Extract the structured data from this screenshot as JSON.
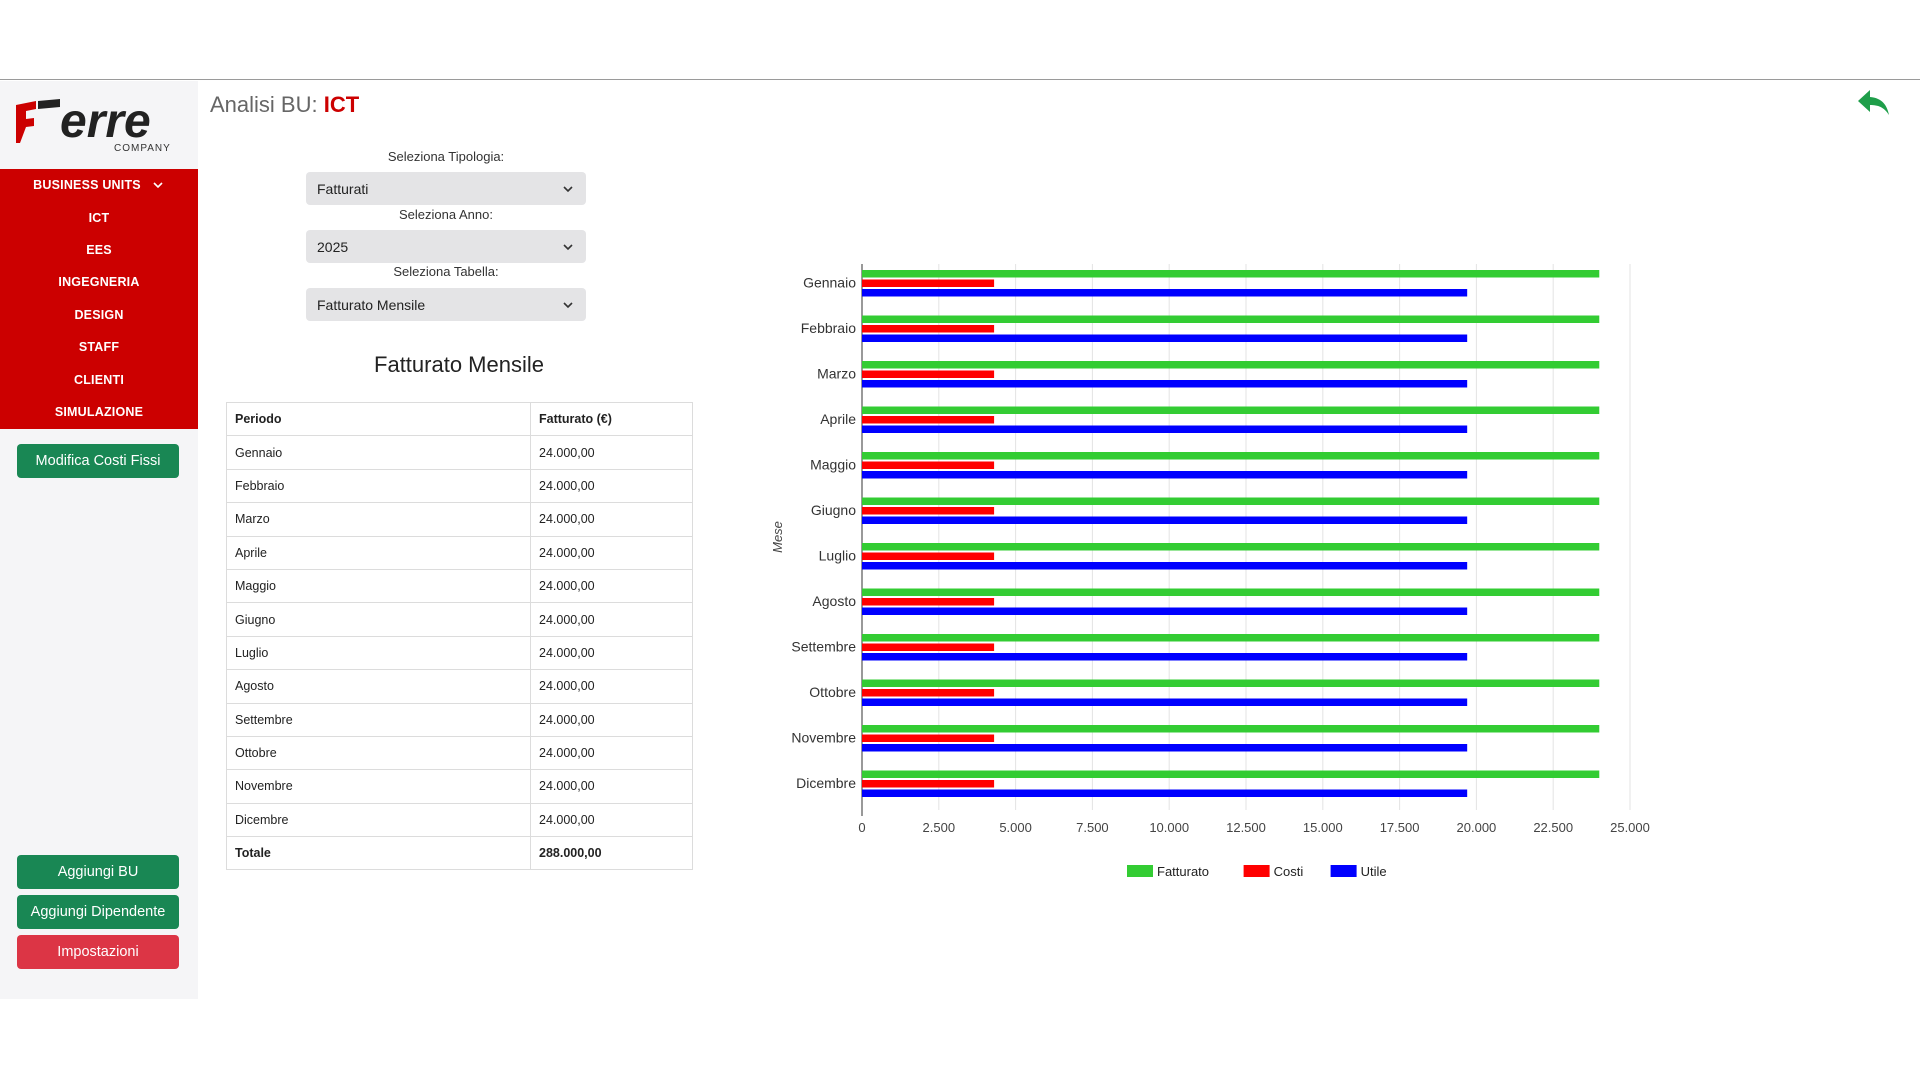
{
  "brand": {
    "logo_text": "erre",
    "logo_sub": "COMPANY"
  },
  "sidebar": {
    "menu_header": "BUSINESS UNITS",
    "items": [
      "ICT",
      "EES",
      "INGEGNERIA",
      "DESIGN",
      "STAFF",
      "CLIENTI",
      "SIMULAZIONE"
    ],
    "edit_costs_button": "Modifica Costi Fissi",
    "add_bu_button": "Aggiungi BU",
    "add_employee_button": "Aggiungi Dipendente",
    "settings_button": "Impostazioni"
  },
  "header": {
    "title_prefix": "Analisi BU:",
    "title_bu": "ICT"
  },
  "controls": {
    "type_label": "Seleziona Tipologia:",
    "type_value": "Fatturati",
    "year_label": "Seleziona Anno:",
    "year_value": "2025",
    "table_label": "Seleziona Tabella:",
    "table_value": "Fatturato Mensile"
  },
  "table": {
    "title": "Fatturato Mensile",
    "col_period": "Periodo",
    "col_revenue": "Fatturato (€)",
    "rows": [
      [
        "Gennaio",
        "24.000,00"
      ],
      [
        "Febbraio",
        "24.000,00"
      ],
      [
        "Marzo",
        "24.000,00"
      ],
      [
        "Aprile",
        "24.000,00"
      ],
      [
        "Maggio",
        "24.000,00"
      ],
      [
        "Giugno",
        "24.000,00"
      ],
      [
        "Luglio",
        "24.000,00"
      ],
      [
        "Agosto",
        "24.000,00"
      ],
      [
        "Settembre",
        "24.000,00"
      ],
      [
        "Ottobre",
        "24.000,00"
      ],
      [
        "Novembre",
        "24.000,00"
      ],
      [
        "Dicembre",
        "24.000,00"
      ]
    ],
    "total_label": "Totale",
    "total_value": "288.000,00"
  },
  "colors": {
    "accent_red": "#cc0000",
    "button_green": "#198754",
    "button_red": "#dc3545"
  },
  "chart_data": {
    "type": "bar",
    "orientation": "horizontal",
    "ylabel": "Mese",
    "xlabel": "",
    "categories": [
      "Gennaio",
      "Febbraio",
      "Marzo",
      "Aprile",
      "Maggio",
      "Giugno",
      "Luglio",
      "Agosto",
      "Settembre",
      "Ottobre",
      "Novembre",
      "Dicembre"
    ],
    "series": [
      {
        "name": "Fatturato",
        "color": "#33cc33",
        "values": [
          24000,
          24000,
          24000,
          24000,
          24000,
          24000,
          24000,
          24000,
          24000,
          24000,
          24000,
          24000
        ]
      },
      {
        "name": "Costi",
        "color": "#ff0000",
        "values": [
          4300,
          4300,
          4300,
          4300,
          4300,
          4300,
          4300,
          4300,
          4300,
          4300,
          4300,
          4300
        ]
      },
      {
        "name": "Utile",
        "color": "#0000ff",
        "values": [
          19700,
          19700,
          19700,
          19700,
          19700,
          19700,
          19700,
          19700,
          19700,
          19700,
          19700,
          19700
        ]
      }
    ],
    "xlim": [
      0,
      25000
    ],
    "xticks": [
      "0",
      "2.500",
      "5.000",
      "7.500",
      "10.000",
      "12.500",
      "15.000",
      "17.500",
      "20.000",
      "22.500",
      "25.000"
    ],
    "grid": true,
    "legend": "bottom"
  }
}
